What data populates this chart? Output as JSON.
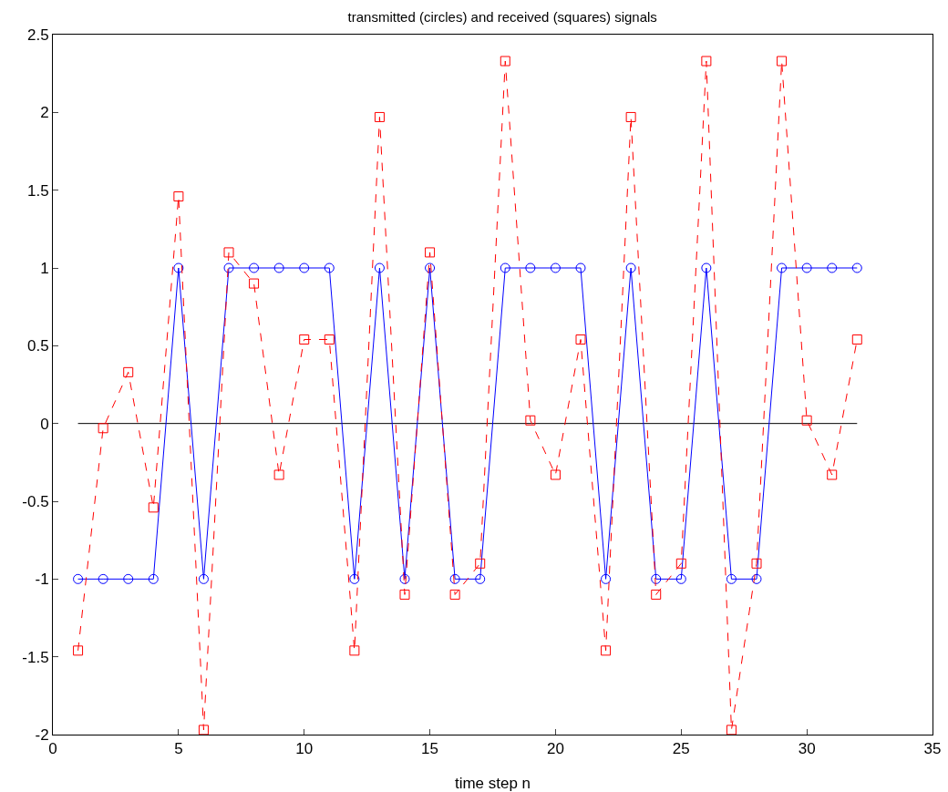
{
  "chart_data": {
    "type": "line",
    "title": "transmitted (circles) and received (squares) signals",
    "xlabel": "time step n",
    "x": [
      1,
      2,
      3,
      4,
      5,
      6,
      7,
      8,
      9,
      10,
      11,
      12,
      13,
      14,
      15,
      16,
      17,
      18,
      19,
      20,
      21,
      22,
      23,
      24,
      25,
      26,
      27,
      28,
      29,
      30,
      31,
      32
    ],
    "series": [
      {
        "color": "#000000",
        "x": [
          1,
          32
        ],
        "values": [
          0,
          0
        ],
        "marker": "none",
        "line_style": "solid"
      },
      {
        "color": "#0000ff",
        "marker": "circle",
        "line_style": "solid",
        "values": [
          -1,
          -1,
          -1,
          -1,
          1,
          -1,
          1,
          1,
          1,
          1,
          1,
          -1,
          1,
          -1,
          1,
          -1,
          -1,
          1,
          1,
          1,
          1,
          -1,
          1,
          -1,
          -1,
          1,
          -1,
          -1,
          1,
          1,
          1,
          1
        ]
      },
      {
        "color": "#ff0000",
        "marker": "square",
        "line_style": "dashed",
        "values": [
          -1.46,
          -0.03,
          0.33,
          -0.54,
          1.46,
          -1.97,
          1.1,
          0.9,
          -0.33,
          0.54,
          0.54,
          -1.46,
          1.97,
          -1.1,
          1.1,
          -1.1,
          -0.9,
          2.33,
          0.02,
          -0.33,
          0.54,
          -1.46,
          1.97,
          -1.1,
          -0.9,
          2.33,
          -1.97,
          -0.9,
          2.33,
          0.02,
          -0.33,
          0.54
        ]
      }
    ],
    "xlim": [
      0,
      35
    ],
    "xticks": [
      0,
      5,
      10,
      15,
      20,
      25,
      30,
      35
    ],
    "ylim": [
      -2,
      2.5
    ],
    "yticks": [
      -2,
      -1.5,
      -1,
      -0.5,
      0,
      0.5,
      1,
      1.5,
      2,
      2.5
    ],
    "grid": false
  }
}
